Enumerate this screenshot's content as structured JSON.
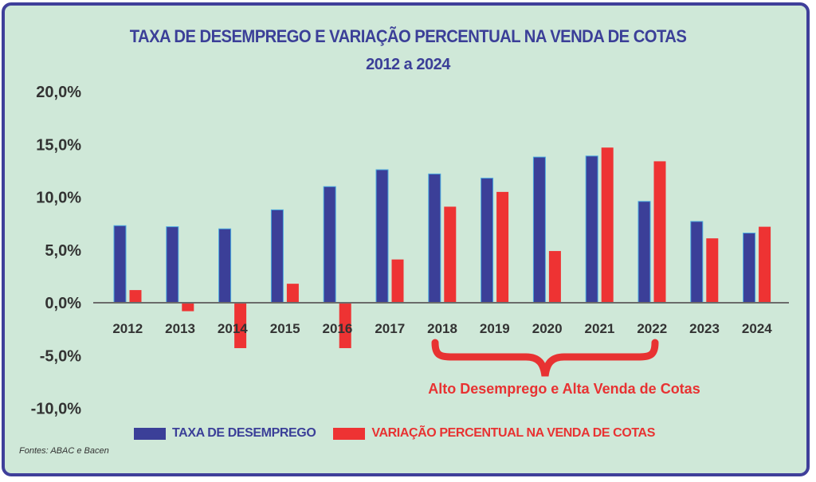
{
  "title": "TAXA DE DESEMPREGO E VARIAÇÃO PERCENTUAL NA VENDA DE COTAS",
  "subtitle": "2012 a 2024",
  "legend": {
    "series_1": "TAXA DE DESEMPREGO",
    "series_2": "VARIAÇÃO PERCENTUAL NA VENDA DE COTAS"
  },
  "annotation": "Alto Desemprego e Alta Venda de Cotas",
  "source": "Fontes: ABAC e Bacen",
  "colors": {
    "background": "#cfe8d8",
    "border": "#3f3f9a",
    "series_1": "#3b3f98",
    "series_2": "#ee3333",
    "title": "#3b3f98",
    "annotation": "#e83232",
    "axis": "#6b6b6b"
  },
  "chart_data": {
    "type": "bar",
    "title": "TAXA DE DESEMPREGO E VARIAÇÃO PERCENTUAL NA VENDA DE COTAS",
    "subtitle": "2012 a 2024",
    "xlabel": "",
    "ylabel": "",
    "categories": [
      "2012",
      "2013",
      "2014",
      "2015",
      "2016",
      "2017",
      "2018",
      "2019",
      "2020",
      "2021",
      "2022",
      "2023",
      "2024"
    ],
    "series": [
      {
        "name": "TAXA DE DESEMPREGO",
        "color": "#3b3f98",
        "values": [
          7.3,
          7.2,
          7.0,
          8.8,
          11.0,
          12.6,
          12.2,
          11.8,
          13.8,
          13.9,
          9.6,
          7.7,
          6.6
        ]
      },
      {
        "name": "VARIAÇÃO PERCENTUAL NA VENDA DE COTAS",
        "color": "#ee3333",
        "values": [
          1.2,
          -0.8,
          -4.3,
          1.8,
          -4.3,
          4.1,
          9.1,
          10.5,
          4.9,
          14.7,
          13.4,
          6.1,
          7.2
        ]
      }
    ],
    "ylim": [
      -10,
      20
    ],
    "yticks": [
      "20,0%",
      "15,0%",
      "10,0%",
      "5,0%",
      "0,0%",
      "-5,0%",
      "-10,0%"
    ],
    "ytick_values": [
      20,
      15,
      10,
      5,
      0,
      -5,
      -10
    ],
    "grid": false,
    "legend_position": "bottom",
    "annotations": [
      {
        "text": "Alto Desemprego e Alta Venda de Cotas",
        "type": "brace",
        "from": "2018",
        "to": "2022"
      }
    ]
  }
}
